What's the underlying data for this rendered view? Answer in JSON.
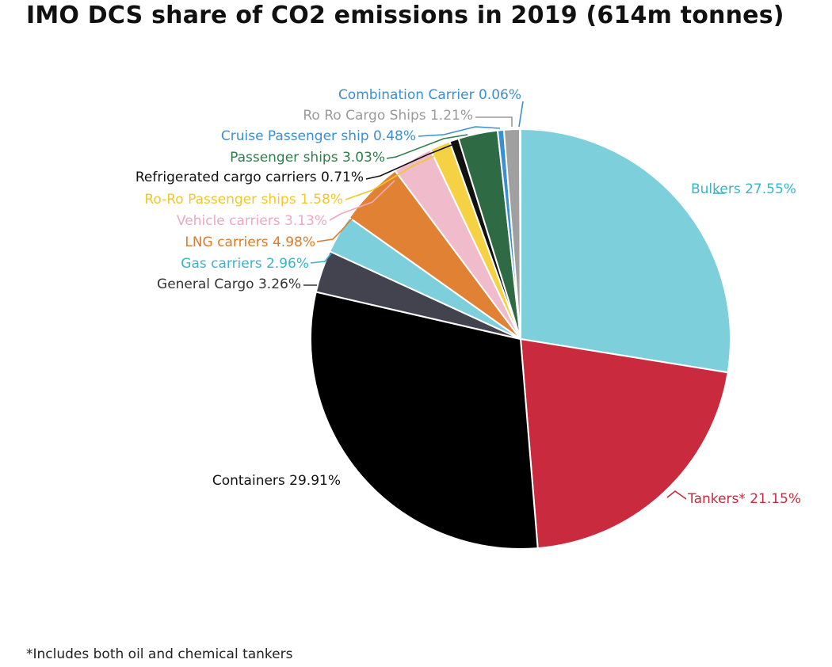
{
  "colors": {
    "bulkers": "#7ecfdc",
    "tankers": "#c92a3d",
    "containers": "#000000",
    "general_cargo": "#434350",
    "gas_carriers": "#7ecfdc",
    "lng_carriers": "#e08133",
    "vehicle_carriers": "#f0bccb",
    "ro_ro_passenger": "#f5d244",
    "refrigerated": "#111111",
    "passenger": "#2e6a44",
    "cruise": "#3a8fd3",
    "ro_ro_cargo": "#a0a0a0",
    "combination": "#3a8fd3"
  },
  "chart_data": {
    "type": "pie",
    "title": "IMO DCS share of CO2 emissions in 2019 (614m tonnes)",
    "footnote": "*Includes both oil and chemical tankers",
    "slices": [
      {
        "name": "Bulkers",
        "value": 27.55,
        "label": "Bulkers 27.55%",
        "color": "#7ecfdc",
        "label_color": "#3bb3c9"
      },
      {
        "name": "Tankers*",
        "value": 21.15,
        "label": "Tankers* 21.15%",
        "color": "#c92a3d",
        "label_color": "#c92a3d"
      },
      {
        "name": "Containers",
        "value": 29.91,
        "label": "Containers 29.91%",
        "color": "#000000",
        "label_color": "#111111"
      },
      {
        "name": "General Cargo",
        "value": 3.26,
        "label": "General Cargo 3.26%",
        "color": "#434350",
        "label_color": "#333333"
      },
      {
        "name": "Gas carriers",
        "value": 2.96,
        "label": "Gas carriers 2.96%",
        "color": "#7ecfdc",
        "label_color": "#3bb3c9"
      },
      {
        "name": "LNG carriers",
        "value": 4.98,
        "label": "LNG carriers 4.98%",
        "color": "#e08133",
        "label_color": "#e07a25"
      },
      {
        "name": "Vehicle carriers",
        "value": 3.13,
        "label": "Vehicle carriers 3.13%",
        "color": "#f0bccb",
        "label_color": "#eea9bd"
      },
      {
        "name": "Ro-Ro Passenger ships",
        "value": 1.58,
        "label": "Ro-Ro Passenger ships 1.58%",
        "color": "#f5d244",
        "label_color": "#f0c72c"
      },
      {
        "name": "Refrigerated cargo carriers",
        "value": 0.71,
        "label": "Refrigerated cargo carriers 0.71%",
        "color": "#111111",
        "label_color": "#111111"
      },
      {
        "name": "Passenger ships",
        "value": 3.03,
        "label": "Passenger ships 3.03%",
        "color": "#2e6a44",
        "label_color": "#2e7d4a"
      },
      {
        "name": "Cruise Passenger ship",
        "value": 0.48,
        "label": "Cruise Passenger ship 0.48%",
        "color": "#3a8fd3",
        "label_color": "#3a8fd3"
      },
      {
        "name": "Ro Ro Cargo Ships",
        "value": 1.21,
        "label": "Ro Ro Cargo Ships 1.21%",
        "color": "#a0a0a0",
        "label_color": "#9a9a9a"
      },
      {
        "name": "Combination Carrier",
        "value": 0.06,
        "label": "Combination Carrier 0.06%",
        "color": "#3a8fd3",
        "label_color": "#3a8fd3"
      }
    ]
  }
}
